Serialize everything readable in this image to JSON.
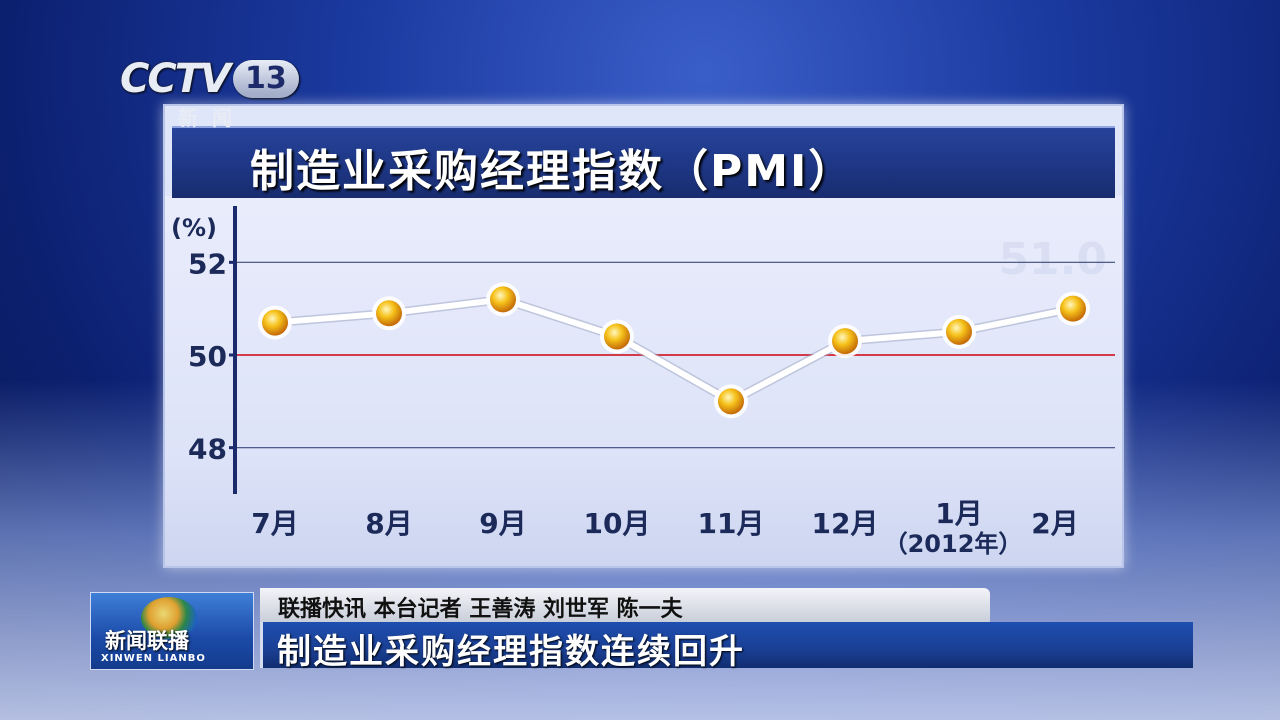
{
  "channel": {
    "logo_text": "CCTV",
    "number": "13",
    "sub": "新闻"
  },
  "chart_data": {
    "type": "line",
    "title": "制造业采购经理指数（PMI）",
    "ylabel": "(%)",
    "ylim": [
      47,
      53
    ],
    "yticks": [
      48,
      50,
      52
    ],
    "categories": [
      "7月",
      "8月",
      "9月",
      "10月",
      "11月",
      "12月",
      "1月",
      "2月"
    ],
    "category_note": "（2012年）",
    "series": [
      {
        "values": [
          50.7,
          50.9,
          51.2,
          50.4,
          49.0,
          50.3,
          50.5,
          51.0
        ]
      }
    ],
    "reference_line": 50,
    "watermark": "51.0",
    "colors": {
      "line": "#ffffff",
      "reference": "#d33a4a",
      "grid": "#3a4a7a",
      "axis": "#1a2a6a",
      "marker": "#f0a818"
    }
  },
  "ticker": {
    "logo_cn": "新闻联播",
    "logo_en": "XINWEN LIANBO",
    "top": "联播快讯  本台记者 王善涛 刘世军 陈一夫",
    "headline": "制造业采购经理指数连续回升"
  }
}
